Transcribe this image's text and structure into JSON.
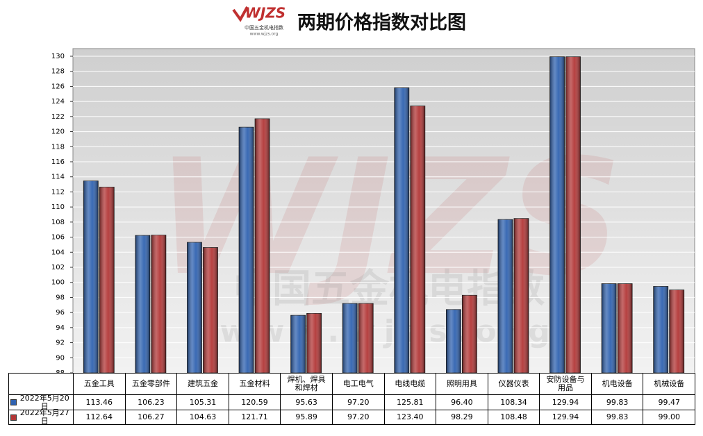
{
  "logo": {
    "brand": "WJZS",
    "name": "中国五金机电指数",
    "url": "www.wjzs.org"
  },
  "chart_data": {
    "type": "bar",
    "title": "两期价格指数对比图",
    "categories": [
      "五金工具",
      "五金零部件",
      "建筑五金",
      "五金材料",
      "焊机、焊具和焊材",
      "电工电气",
      "电线电缆",
      "照明用具",
      "仪器仪表",
      "安防设备与用品",
      "机电设备",
      "机械设备"
    ],
    "series": [
      {
        "name": "2022年5月20日",
        "color": "#2f62b0",
        "values": [
          113.46,
          106.23,
          105.31,
          120.59,
          95.63,
          97.2,
          125.81,
          96.4,
          108.34,
          129.94,
          99.83,
          99.47
        ],
        "value_labels": [
          "113.46",
          "106.23",
          "105.31",
          "120.59",
          "95.63",
          "97.20",
          "125.81",
          "96.40",
          "108.34",
          "129.94",
          "99.83",
          "99.47"
        ]
      },
      {
        "name": "2022年5月27日",
        "color": "#b23636",
        "values": [
          112.64,
          106.27,
          104.63,
          121.71,
          95.89,
          97.2,
          123.4,
          98.29,
          108.48,
          129.94,
          99.83,
          99.0
        ],
        "value_labels": [
          "112.64",
          "106.27",
          "104.63",
          "121.71",
          "95.89",
          "97.20",
          "123.40",
          "98.29",
          "108.48",
          "129.94",
          "99.83",
          "99.00"
        ]
      }
    ],
    "ylim": [
      88,
      130
    ],
    "yticks": [
      88,
      90,
      92,
      94,
      96,
      98,
      100,
      102,
      104,
      106,
      108,
      110,
      112,
      114,
      116,
      118,
      120,
      122,
      124,
      126,
      128,
      130
    ],
    "grid": true,
    "legend": "table"
  }
}
